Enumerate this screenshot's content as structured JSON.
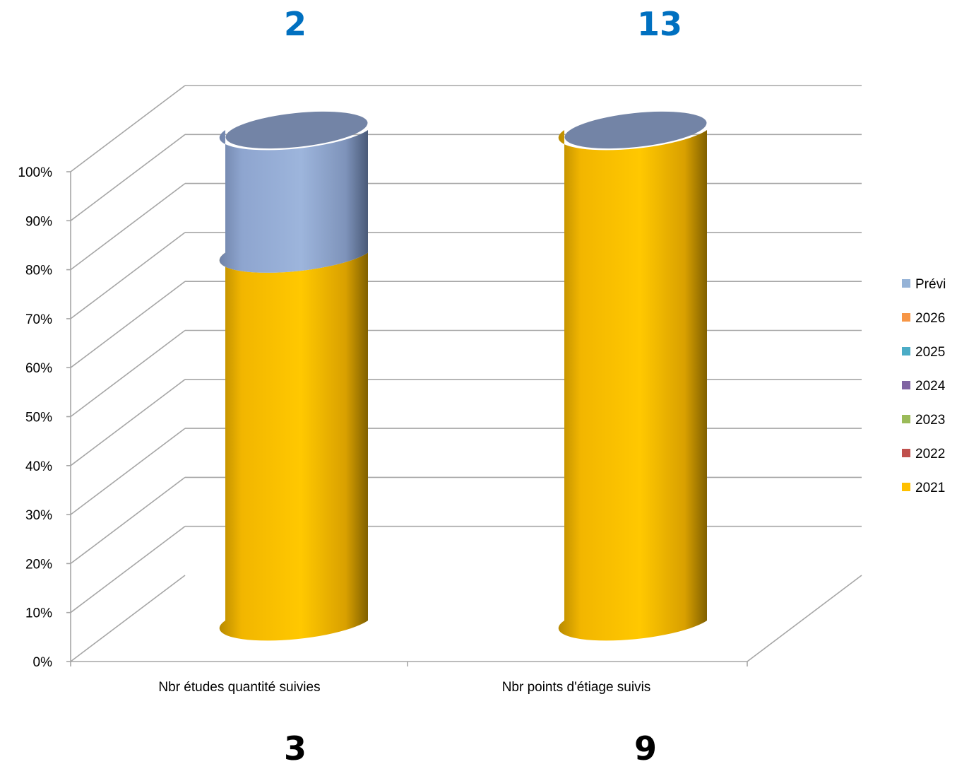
{
  "chart_data": {
    "type": "bar",
    "subtype": "3d-cylinder-stacked-100-percent",
    "categories": [
      "Nbr études quantité suivies",
      "Nbr points d'étiage suivis"
    ],
    "series": [
      {
        "name": "2021",
        "color": "#FFC000",
        "values": [
          3,
          9
        ]
      },
      {
        "name": "2022",
        "color": "#C0504D",
        "values": [
          0,
          0
        ]
      },
      {
        "name": "2023",
        "color": "#9BBB59",
        "values": [
          0,
          0
        ]
      },
      {
        "name": "2024",
        "color": "#8064A2",
        "values": [
          0,
          0
        ]
      },
      {
        "name": "2025",
        "color": "#4BACC6",
        "values": [
          0,
          0
        ]
      },
      {
        "name": "2026",
        "color": "#F79646",
        "values": [
          0,
          0
        ]
      },
      {
        "name": "Prévi",
        "color": "#95B3D7",
        "values": [
          1,
          0
        ]
      }
    ],
    "top_labels": [
      "2",
      "13"
    ],
    "bottom_labels": [
      "3",
      "9"
    ],
    "yticks": [
      "0%",
      "10%",
      "20%",
      "30%",
      "40%",
      "50%",
      "60%",
      "70%",
      "80%",
      "90%",
      "100%"
    ],
    "ylim": [
      0,
      100
    ],
    "grid": true,
    "legend_position": "right",
    "title": "",
    "xlabel": "",
    "ylabel": ""
  },
  "colors": {
    "top_label": "#0070C0",
    "bottom_label": "#000000",
    "grid": "#A6A6A6"
  }
}
